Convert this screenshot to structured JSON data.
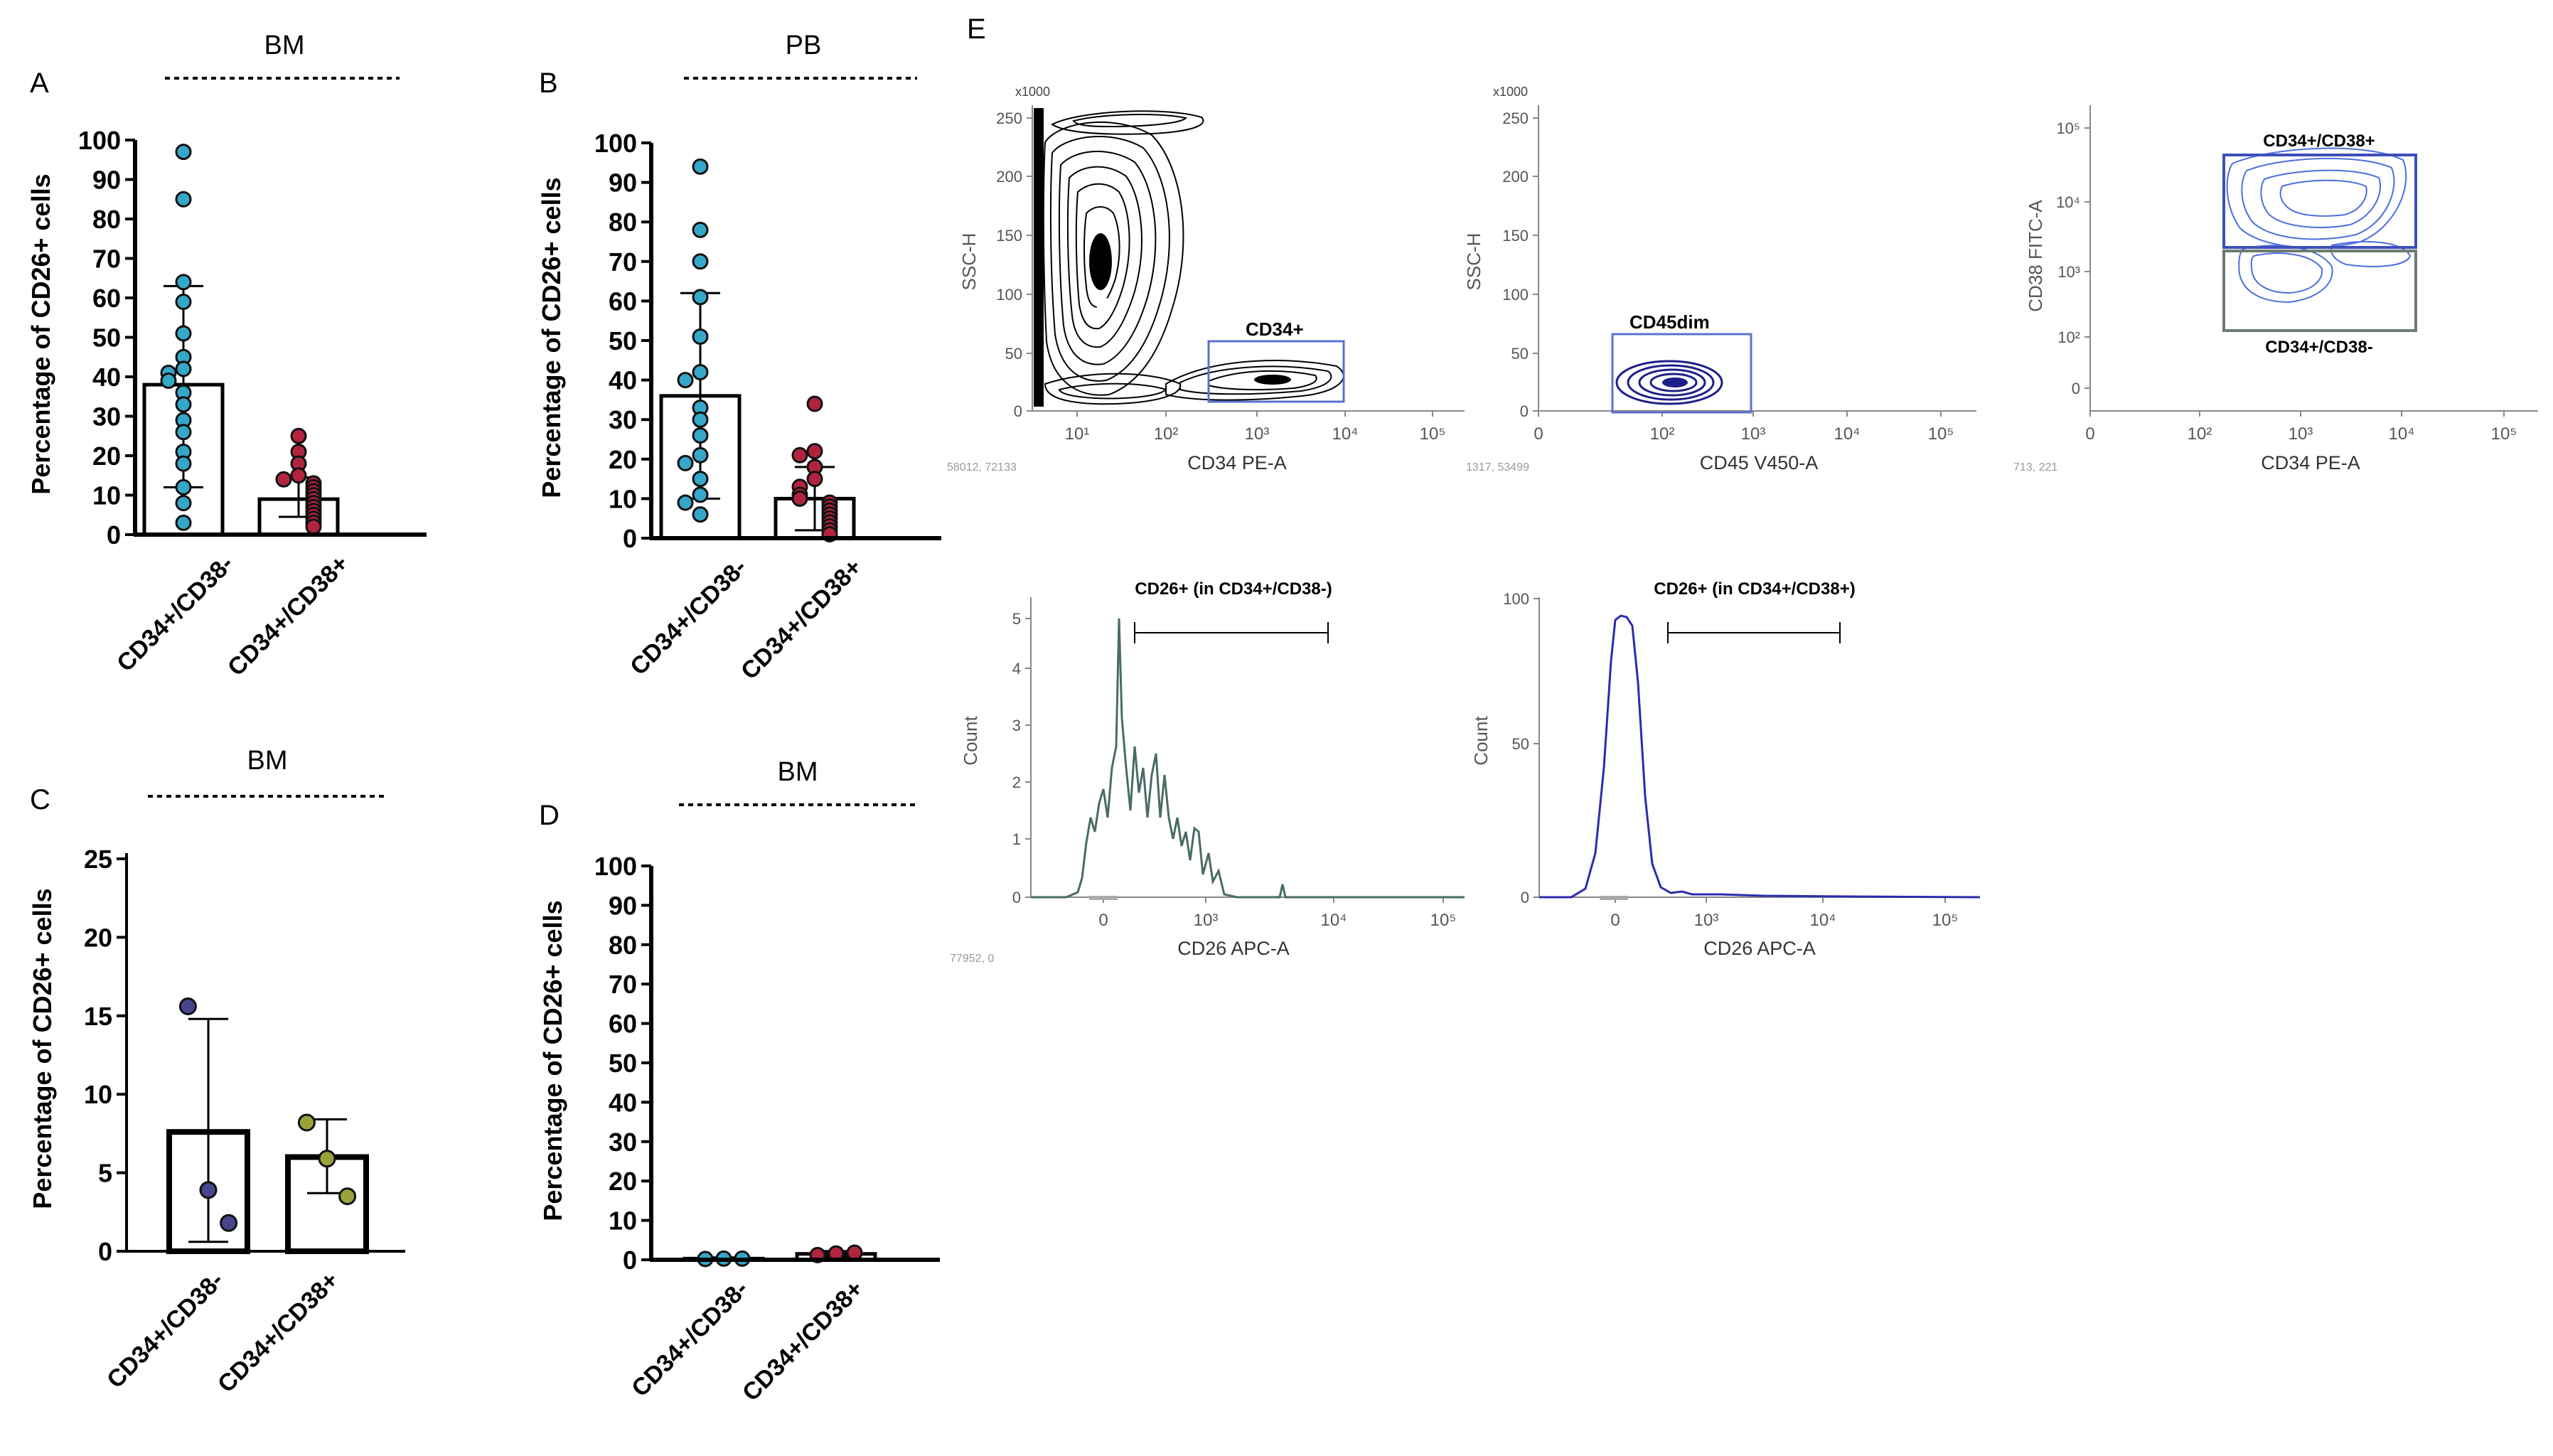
{
  "colors": {
    "teal": "#35a7c9",
    "wine": "#b1243e",
    "purple": "#48458c",
    "olive": "#9aa23c",
    "navy": "#1e1e8a",
    "gate": "#5d6fd1",
    "gray_gate": "#6e7c72",
    "ink": "#000000",
    "hist1": "#4a6b66",
    "hist2": "#2b2bb0",
    "contour_blue": "#4c6ee0"
  },
  "chart_data": [
    {
      "panel": "A",
      "type": "bar",
      "title": "BM",
      "ylabel": "Percentage of  CD26+ cells",
      "categories": [
        "CD34+/CD38-",
        "CD34+/CD38+"
      ],
      "ylim": [
        0,
        100
      ],
      "yticks": [
        "0",
        "10",
        "20",
        "30",
        "40",
        "50",
        "60",
        "70",
        "80",
        "90",
        "100"
      ],
      "values": [
        38,
        9
      ],
      "sd_low": [
        12,
        4.5
      ],
      "sd_high": [
        63,
        14.5
      ],
      "points": [
        [
          97,
          85,
          64,
          59,
          51,
          45,
          42,
          41,
          39,
          36,
          33,
          29,
          26,
          21,
          18,
          12,
          8,
          3
        ],
        [
          25,
          21,
          18,
          15,
          14,
          13,
          12,
          11,
          10,
          9,
          8,
          7,
          6,
          5,
          4,
          3,
          2
        ]
      ]
    },
    {
      "panel": "B",
      "type": "bar",
      "title": "PB",
      "ylabel": "Percentage of  CD26+ cells",
      "categories": [
        "CD34+/CD38-",
        "CD34+/CD38+"
      ],
      "ylim": [
        0,
        100
      ],
      "yticks": [
        "0",
        "10",
        "20",
        "30",
        "40",
        "50",
        "60",
        "70",
        "80",
        "90",
        "100"
      ],
      "values": [
        36,
        10
      ],
      "sd_low": [
        10,
        2
      ],
      "sd_high": [
        62,
        18
      ],
      "points": [
        [
          94,
          78,
          70,
          61,
          51,
          42,
          40,
          33,
          30,
          26,
          21,
          19,
          15,
          11,
          9,
          6
        ],
        [
          34,
          22,
          21,
          18,
          15,
          13,
          11,
          10,
          9,
          8,
          7,
          6,
          5,
          4,
          3,
          2,
          1
        ]
      ]
    },
    {
      "panel": "C",
      "type": "bar",
      "title": "BM",
      "ylabel": "Percentage of  CD26+ cells",
      "categories": [
        "CD34+/CD38-",
        "CD34+/CD38+"
      ],
      "ylim": [
        0,
        25
      ],
      "yticks": [
        "0",
        "5",
        "10",
        "15",
        "20",
        "25"
      ],
      "values": [
        7.6,
        6
      ],
      "sd_low": [
        0.6,
        3.7
      ],
      "sd_high": [
        14.8,
        8.4
      ],
      "points": [
        [
          15.6,
          3.9,
          1.8
        ],
        [
          8.2,
          5.9,
          3.5
        ]
      ]
    },
    {
      "panel": "D",
      "type": "bar",
      "title": "BM",
      "ylabel": "Percentage of  CD26+ cells",
      "categories": [
        "CD34+/CD38-",
        "CD34+/CD38+"
      ],
      "ylim": [
        0,
        100
      ],
      "yticks": [
        "0",
        "10",
        "20",
        "30",
        "40",
        "50",
        "60",
        "70",
        "80",
        "90",
        "100"
      ],
      "values": [
        0.3,
        1.5
      ],
      "sd_low": [
        0,
        0.8
      ],
      "sd_high": [
        0.6,
        2.2
      ],
      "points": [
        [
          0.2,
          0.3,
          0.3
        ],
        [
          1.2,
          1.6,
          1.8
        ]
      ]
    },
    {
      "panel": "E1",
      "type": "contour",
      "xlabel": "CD34 PE-A",
      "ylabel": "SSC-H",
      "multiplier": "x1000",
      "xticks": [
        "10¹",
        "10²",
        "10³",
        "10⁴",
        "10⁵"
      ],
      "yticks": [
        "0",
        "50",
        "100",
        "150",
        "200",
        "250"
      ],
      "gate": "CD34+",
      "footer": "58012, 72133"
    },
    {
      "panel": "E2",
      "type": "contour",
      "xlabel": "CD45 V450-A",
      "ylabel": "SSC-H",
      "multiplier": "x1000",
      "xticks": [
        "0",
        "10²",
        "10³",
        "10⁴",
        "10⁵"
      ],
      "yticks": [
        "0",
        "50",
        "100",
        "150",
        "200",
        "250"
      ],
      "gate": "CD45dim",
      "footer": "1317, 53499"
    },
    {
      "panel": "E3",
      "type": "contour",
      "xlabel": "CD34 PE-A",
      "ylabel": "CD38 FITC-A",
      "xticks": [
        "0",
        "10²",
        "10³",
        "10⁴",
        "10⁵"
      ],
      "yticks": [
        "0",
        "10²",
        "10³",
        "10⁴",
        "10⁵"
      ],
      "gate_upper": "CD34+/CD38+",
      "gate_lower": "CD34+/CD38-",
      "footer": "713, 221"
    },
    {
      "panel": "E4",
      "type": "histogram",
      "xlabel": "CD26 APC-A",
      "ylabel": "Count",
      "xticks": [
        "0",
        "10³",
        "10⁴",
        "10⁵"
      ],
      "yticks": [
        "0",
        "1",
        "2",
        "3",
        "4",
        "5"
      ],
      "gate": "CD26+ (in CD34+/CD38-)",
      "footer": "77952, 0"
    },
    {
      "panel": "E5",
      "type": "histogram",
      "xlabel": "CD26 APC-A",
      "ylabel": "Count",
      "xticks": [
        "0",
        "10³",
        "10⁴",
        "10⁵"
      ],
      "yticks": [
        "0",
        "50",
        "100"
      ],
      "gate": "CD26+ (in CD34+/CD38+)"
    }
  ],
  "panel_letters": [
    "A",
    "B",
    "C",
    "D",
    "E"
  ]
}
